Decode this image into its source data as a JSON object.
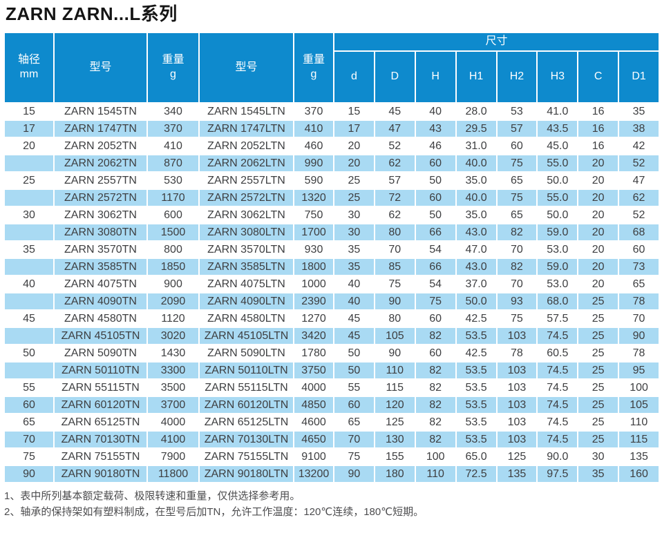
{
  "page": {
    "title": "ZARN ZARN...L系列"
  },
  "colors": {
    "header_blue": "#0e8acd",
    "stripe_blue": "#a9daf3"
  },
  "table": {
    "header": {
      "shaft_label": "轴径",
      "shaft_unit": "mm",
      "model_label_tn": "型号",
      "weight_label_tn": "重量",
      "weight_unit_tn": "g",
      "model_label_ltn": "型号",
      "weight_label_ltn": "重量",
      "weight_unit_ltn": "g",
      "dimensions_label": "尺寸",
      "dim_columns": [
        "d",
        "D",
        "H",
        "H1",
        "H2",
        "H3",
        "C",
        "D1"
      ]
    },
    "rows": [
      {
        "shaft": "15",
        "model_tn": "ZARN 1545TN",
        "weight_tn": "340",
        "model_ltn": "ZARN 1545LTN",
        "weight_ltn": "370",
        "dims": [
          "15",
          "45",
          "40",
          "28.0",
          "53",
          "41.0",
          "16",
          "35"
        ]
      },
      {
        "shaft": "17",
        "model_tn": "ZARN 1747TN",
        "weight_tn": "370",
        "model_ltn": "ZARN 1747LTN",
        "weight_ltn": "410",
        "dims": [
          "17",
          "47",
          "43",
          "29.5",
          "57",
          "43.5",
          "16",
          "38"
        ]
      },
      {
        "shaft": "20",
        "model_tn": "ZARN 2052TN",
        "weight_tn": "410",
        "model_ltn": "ZARN 2052LTN",
        "weight_ltn": "460",
        "dims": [
          "20",
          "52",
          "46",
          "31.0",
          "60",
          "45.0",
          "16",
          "42"
        ]
      },
      {
        "shaft": "",
        "model_tn": "ZARN 2062TN",
        "weight_tn": "870",
        "model_ltn": "ZARN 2062LTN",
        "weight_ltn": "990",
        "dims": [
          "20",
          "62",
          "60",
          "40.0",
          "75",
          "55.0",
          "20",
          "52"
        ]
      },
      {
        "shaft": "25",
        "model_tn": "ZARN 2557TN",
        "weight_tn": "530",
        "model_ltn": "ZARN 2557LTN",
        "weight_ltn": "590",
        "dims": [
          "25",
          "57",
          "50",
          "35.0",
          "65",
          "50.0",
          "20",
          "47"
        ]
      },
      {
        "shaft": "",
        "model_tn": "ZARN 2572TN",
        "weight_tn": "1170",
        "model_ltn": "ZARN 2572LTN",
        "weight_ltn": "1320",
        "dims": [
          "25",
          "72",
          "60",
          "40.0",
          "75",
          "55.0",
          "20",
          "62"
        ]
      },
      {
        "shaft": "30",
        "model_tn": "ZARN 3062TN",
        "weight_tn": "600",
        "model_ltn": "ZARN 3062LTN",
        "weight_ltn": "750",
        "dims": [
          "30",
          "62",
          "50",
          "35.0",
          "65",
          "50.0",
          "20",
          "52"
        ]
      },
      {
        "shaft": "",
        "model_tn": "ZARN 3080TN",
        "weight_tn": "1500",
        "model_ltn": "ZARN 3080LTN",
        "weight_ltn": "1700",
        "dims": [
          "30",
          "80",
          "66",
          "43.0",
          "82",
          "59.0",
          "20",
          "68"
        ]
      },
      {
        "shaft": "35",
        "model_tn": "ZARN 3570TN",
        "weight_tn": "800",
        "model_ltn": "ZARN 3570LTN",
        "weight_ltn": "930",
        "dims": [
          "35",
          "70",
          "54",
          "47.0",
          "70",
          "53.0",
          "20",
          "60"
        ]
      },
      {
        "shaft": "",
        "model_tn": "ZARN 3585TN",
        "weight_tn": "1850",
        "model_ltn": "ZARN 3585LTN",
        "weight_ltn": "1800",
        "dims": [
          "35",
          "85",
          "66",
          "43.0",
          "82",
          "59.0",
          "20",
          "73"
        ]
      },
      {
        "shaft": "40",
        "model_tn": "ZARN 4075TN",
        "weight_tn": "900",
        "model_ltn": "ZARN 4075LTN",
        "weight_ltn": "1000",
        "dims": [
          "40",
          "75",
          "54",
          "37.0",
          "70",
          "53.0",
          "20",
          "65"
        ]
      },
      {
        "shaft": "",
        "model_tn": "ZARN 4090TN",
        "weight_tn": "2090",
        "model_ltn": "ZARN 4090LTN",
        "weight_ltn": "2390",
        "dims": [
          "40",
          "90",
          "75",
          "50.0",
          "93",
          "68.0",
          "25",
          "78"
        ]
      },
      {
        "shaft": "45",
        "model_tn": "ZARN 4580TN",
        "weight_tn": "1120",
        "model_ltn": "ZARN 4580LTN",
        "weight_ltn": "1270",
        "dims": [
          "45",
          "80",
          "60",
          "42.5",
          "75",
          "57.5",
          "25",
          "70"
        ]
      },
      {
        "shaft": "",
        "model_tn": "ZARN 45105TN",
        "weight_tn": "3020",
        "model_ltn": "ZARN 45105LTN",
        "weight_ltn": "3420",
        "dims": [
          "45",
          "105",
          "82",
          "53.5",
          "103",
          "74.5",
          "25",
          "90"
        ]
      },
      {
        "shaft": "50",
        "model_tn": "ZARN 5090TN",
        "weight_tn": "1430",
        "model_ltn": "ZARN 5090LTN",
        "weight_ltn": "1780",
        "dims": [
          "50",
          "90",
          "60",
          "42.5",
          "78",
          "60.5",
          "25",
          "78"
        ]
      },
      {
        "shaft": "",
        "model_tn": "ZARN 50110TN",
        "weight_tn": "3300",
        "model_ltn": "ZARN 50110LTN",
        "weight_ltn": "3750",
        "dims": [
          "50",
          "110",
          "82",
          "53.5",
          "103",
          "74.5",
          "25",
          "95"
        ]
      },
      {
        "shaft": "55",
        "model_tn": "ZARN 55115TN",
        "weight_tn": "3500",
        "model_ltn": "ZARN 55115LTN",
        "weight_ltn": "4000",
        "dims": [
          "55",
          "115",
          "82",
          "53.5",
          "103",
          "74.5",
          "25",
          "100"
        ]
      },
      {
        "shaft": "60",
        "model_tn": "ZARN 60120TN",
        "weight_tn": "3700",
        "model_ltn": "ZARN 60120LTN",
        "weight_ltn": "4850",
        "dims": [
          "60",
          "120",
          "82",
          "53.5",
          "103",
          "74.5",
          "25",
          "105"
        ]
      },
      {
        "shaft": "65",
        "model_tn": "ZARN 65125TN",
        "weight_tn": "4000",
        "model_ltn": "ZARN 65125LTN",
        "weight_ltn": "4600",
        "dims": [
          "65",
          "125",
          "82",
          "53.5",
          "103",
          "74.5",
          "25",
          "110"
        ]
      },
      {
        "shaft": "70",
        "model_tn": "ZARN 70130TN",
        "weight_tn": "4100",
        "model_ltn": "ZARN 70130LTN",
        "weight_ltn": "4650",
        "dims": [
          "70",
          "130",
          "82",
          "53.5",
          "103",
          "74.5",
          "25",
          "115"
        ]
      },
      {
        "shaft": "75",
        "model_tn": "ZARN 75155TN",
        "weight_tn": "7900",
        "model_ltn": "ZARN 75155LTN",
        "weight_ltn": "9100",
        "dims": [
          "75",
          "155",
          "100",
          "65.0",
          "125",
          "90.0",
          "30",
          "135"
        ]
      },
      {
        "shaft": "90",
        "model_tn": "ZARN 90180TN",
        "weight_tn": "11800",
        "model_ltn": "ZARN 90180LTN",
        "weight_ltn": "13200",
        "dims": [
          "90",
          "180",
          "110",
          "72.5",
          "135",
          "97.5",
          "35",
          "160"
        ]
      }
    ]
  },
  "notes": [
    "1、表中所列基本额定载荷、极限转速和重量，仅供选择参考用。",
    "2、轴承的保持架如有塑料制成，在型号后加TN，允许工作温度：120℃连续，180℃短期。"
  ]
}
